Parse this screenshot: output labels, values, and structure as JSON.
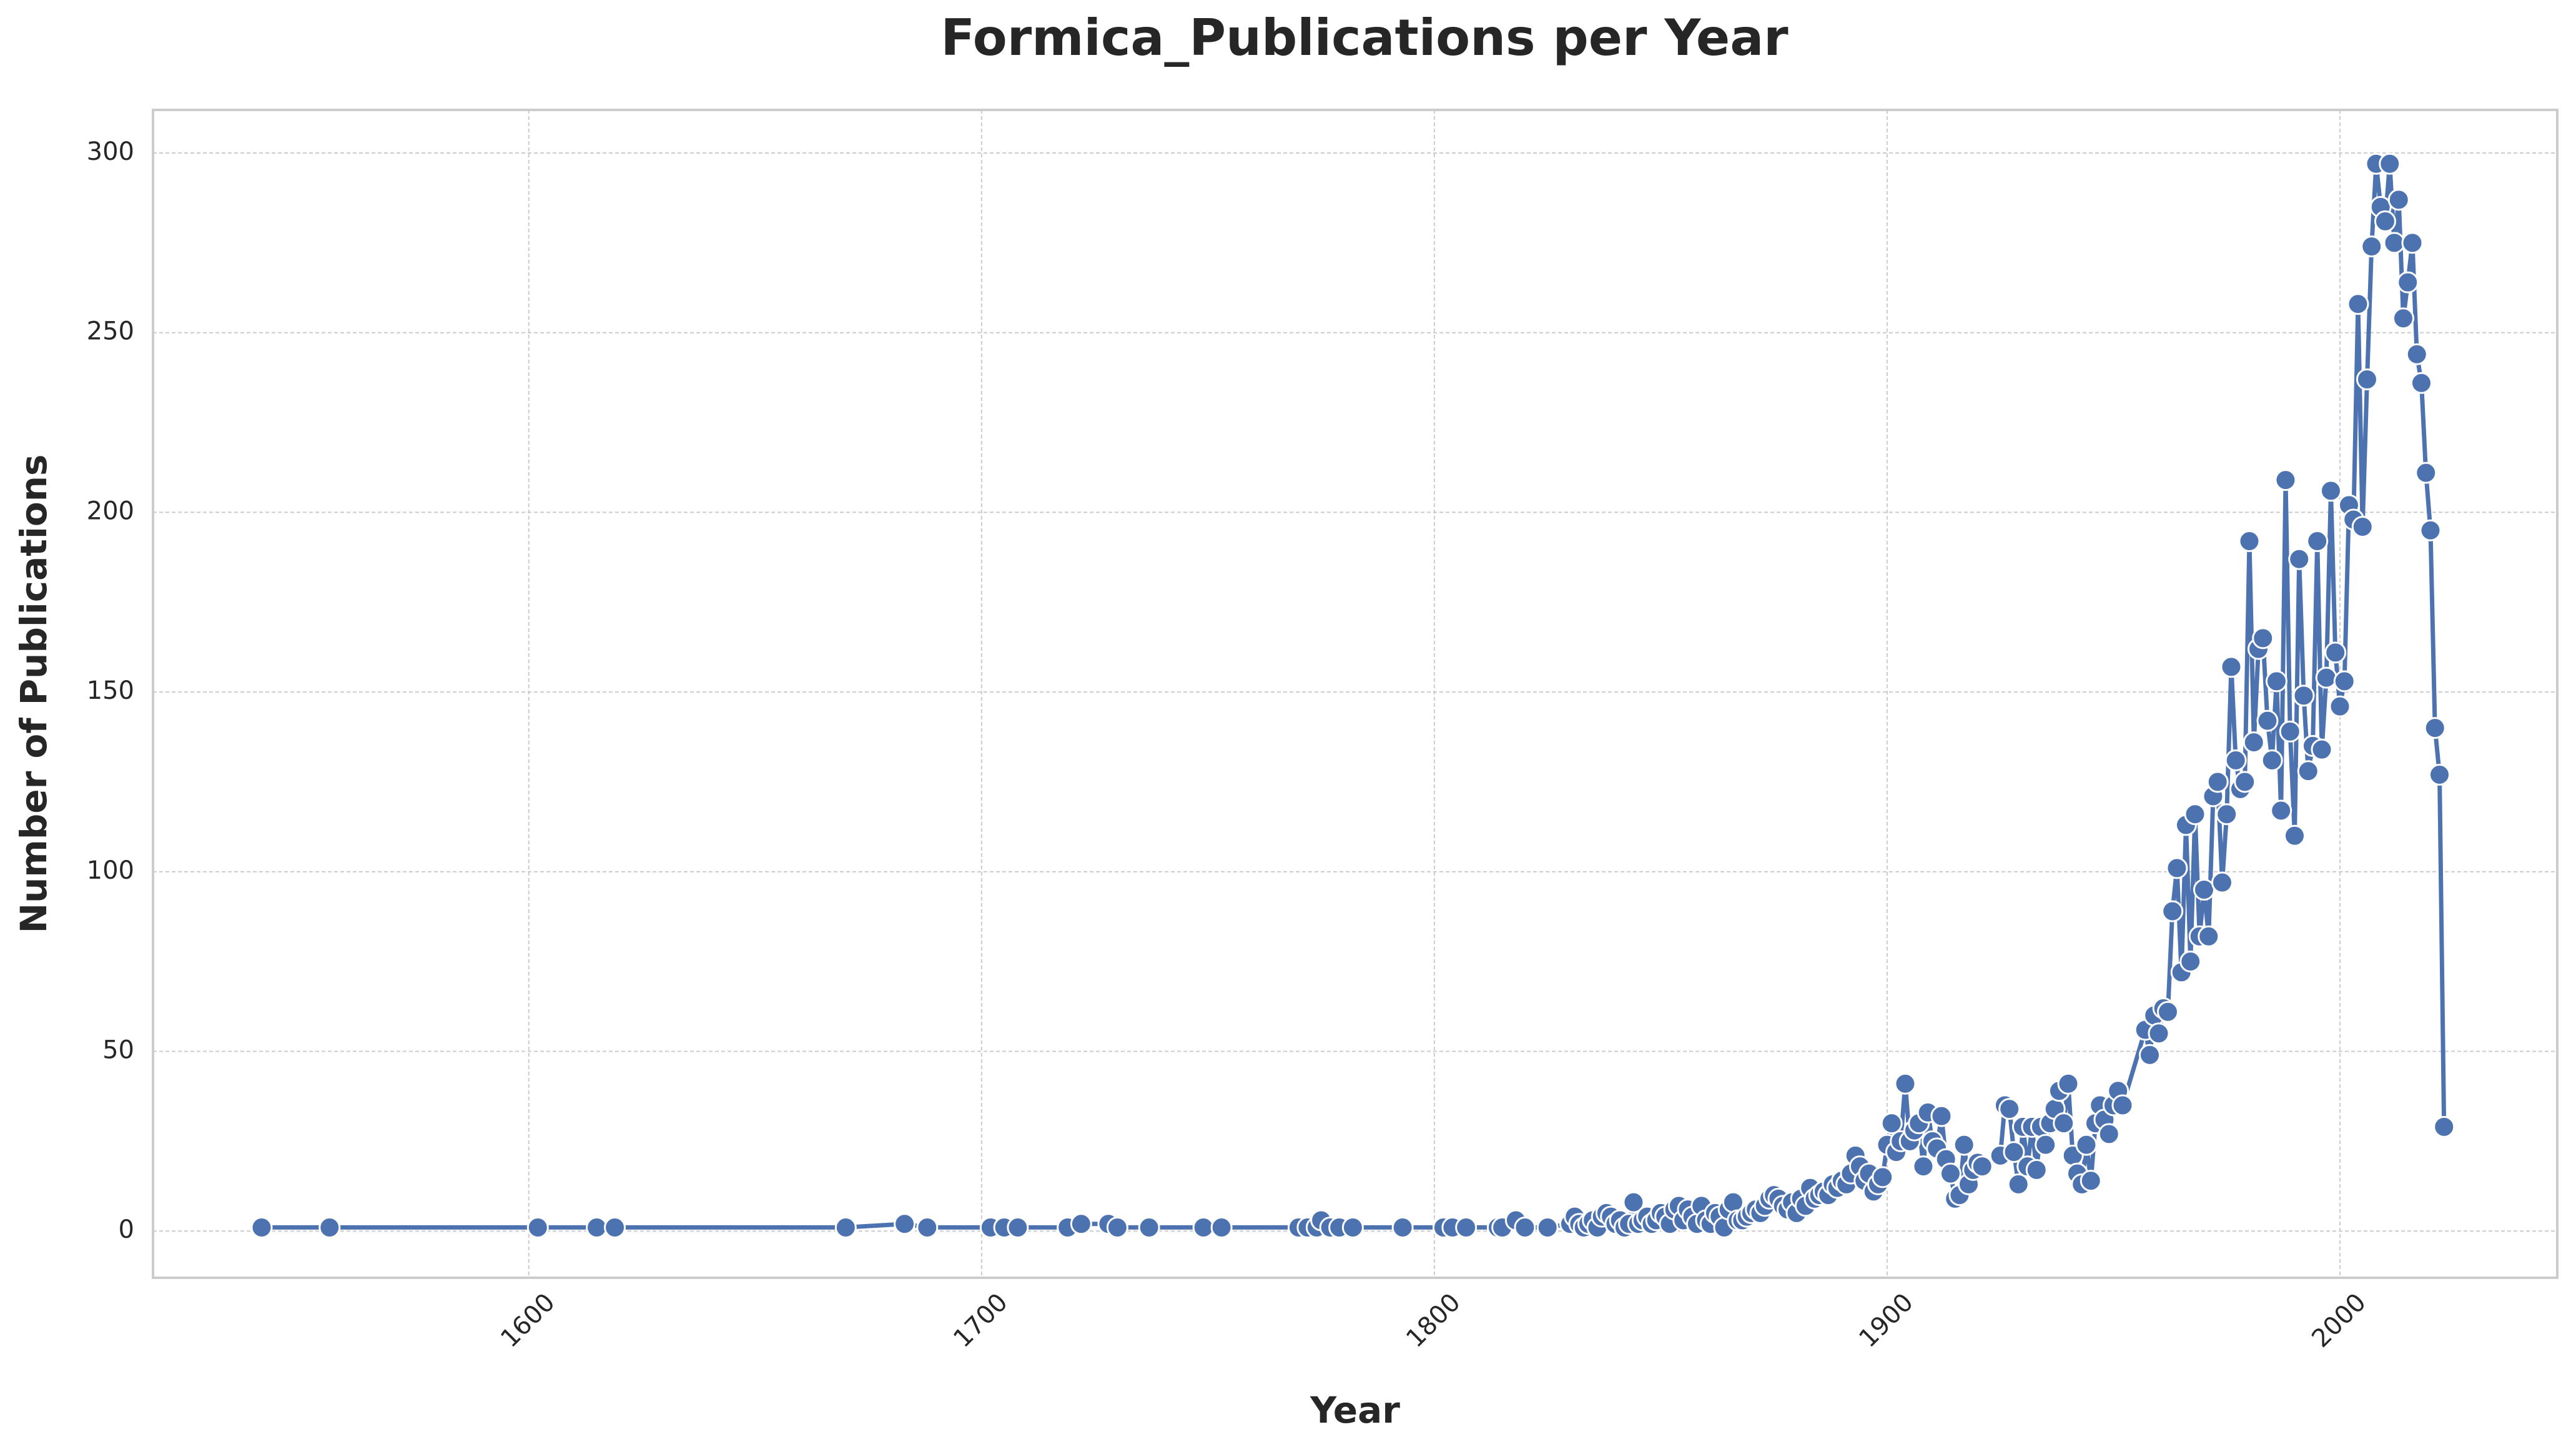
{
  "chart_data": {
    "type": "line",
    "title": "Formica_Publications per Year",
    "x_label": "Year",
    "y_label": "Number of Publications",
    "x": [
      1541,
      1556,
      1602,
      1615,
      1619,
      1670,
      1683,
      1688,
      1702,
      1705,
      1708,
      1719,
      1722,
      1728,
      1730,
      1737,
      1749,
      1753,
      1770,
      1772,
      1774,
      1775,
      1777,
      1779,
      1782,
      1793,
      1802,
      1804,
      1807,
      1814,
      1815,
      1818,
      1820,
      1825,
      1830,
      1831,
      1832,
      1833,
      1834,
      1835,
      1836,
      1837,
      1838,
      1839,
      1840,
      1841,
      1842,
      1843,
      1844,
      1845,
      1846,
      1847,
      1848,
      1849,
      1850,
      1851,
      1852,
      1853,
      1854,
      1855,
      1856,
      1857,
      1858,
      1859,
      1860,
      1861,
      1862,
      1863,
      1864,
      1865,
      1866,
      1867,
      1868,
      1869,
      1870,
      1871,
      1872,
      1873,
      1874,
      1875,
      1876,
      1877,
      1878,
      1879,
      1880,
      1881,
      1882,
      1883,
      1884,
      1885,
      1886,
      1887,
      1888,
      1889,
      1890,
      1891,
      1892,
      1893,
      1894,
      1895,
      1896,
      1897,
      1898,
      1899,
      1900,
      1901,
      1902,
      1903,
      1904,
      1905,
      1906,
      1907,
      1908,
      1909,
      1910,
      1911,
      1912,
      1913,
      1914,
      1915,
      1916,
      1917,
      1918,
      1919,
      1920,
      1921,
      1925,
      1926,
      1927,
      1928,
      1929,
      1930,
      1931,
      1932,
      1933,
      1934,
      1935,
      1936,
      1937,
      1938,
      1939,
      1940,
      1941,
      1942,
      1943,
      1944,
      1945,
      1946,
      1947,
      1948,
      1949,
      1950,
      1951,
      1952,
      1957,
      1958,
      1959,
      1960,
      1961,
      1962,
      1963,
      1964,
      1965,
      1966,
      1967,
      1968,
      1969,
      1970,
      1971,
      1972,
      1973,
      1974,
      1975,
      1976,
      1977,
      1978,
      1979,
      1980,
      1981,
      1982,
      1983,
      1984,
      1985,
      1986,
      1987,
      1988,
      1989,
      1990,
      1991,
      1992,
      1993,
      1994,
      1995,
      1996,
      1997,
      1998,
      1999,
      2000,
      2001,
      2002,
      2003,
      2004,
      2005,
      2006,
      2007,
      2008,
      2009,
      2010,
      2011,
      2012,
      2013,
      2014,
      2015,
      2016,
      2017,
      2018,
      2019,
      2020,
      2021,
      2022,
      2023
    ],
    "series": [
      {
        "name": "Publications",
        "color": "#4c72b0",
        "values": [
          1,
          1,
          1,
          1,
          1,
          1,
          2,
          1,
          1,
          1,
          1,
          1,
          2,
          2,
          1,
          1,
          1,
          1,
          1,
          1,
          1,
          3,
          1,
          1,
          1,
          1,
          1,
          1,
          1,
          1,
          1,
          3,
          1,
          1,
          2,
          4,
          2,
          1,
          2,
          3,
          1,
          4,
          5,
          4,
          2,
          3,
          1,
          2,
          8,
          2,
          3,
          4,
          2,
          3,
          5,
          4,
          2,
          6,
          7,
          3,
          6,
          4,
          2,
          7,
          3,
          2,
          5,
          4,
          1,
          6,
          8,
          3,
          3,
          4,
          5,
          6,
          5,
          7,
          9,
          10,
          9,
          7,
          6,
          8,
          5,
          9,
          7,
          12,
          9,
          10,
          11,
          10,
          13,
          12,
          14,
          13,
          16,
          21,
          18,
          14,
          16,
          11,
          13,
          15,
          24,
          30,
          22,
          25,
          41,
          25,
          28,
          30,
          18,
          33,
          25,
          23,
          32,
          20,
          16,
          9,
          10,
          24,
          13,
          17,
          19,
          18,
          21,
          35,
          34,
          22,
          13,
          29,
          18,
          29,
          17,
          29,
          24,
          30,
          34,
          39,
          30,
          41,
          21,
          16,
          13,
          24,
          14,
          30,
          35,
          31,
          27,
          35,
          39,
          35,
          56,
          49,
          60,
          55,
          62,
          61,
          89,
          101,
          72,
          113,
          75,
          116,
          82,
          95,
          82,
          121,
          125,
          97,
          116,
          157,
          131,
          123,
          125,
          192,
          136,
          162,
          165,
          142,
          131,
          153,
          117,
          209,
          139,
          110,
          187,
          149,
          128,
          135,
          192,
          134,
          154,
          206,
          161,
          146,
          153,
          202,
          198,
          258,
          196,
          237,
          274,
          297,
          285,
          281,
          297,
          275,
          287,
          254,
          264,
          275,
          244,
          236,
          211,
          195,
          140,
          127,
          29
        ]
      }
    ],
    "xlim": [
      1517,
      2048
    ],
    "ylim": [
      -13,
      312
    ],
    "xticks": [
      1600,
      1700,
      1800,
      1900,
      2000
    ],
    "yticks": [
      0,
      50,
      100,
      150,
      200,
      250,
      300
    ],
    "grid": true
  }
}
